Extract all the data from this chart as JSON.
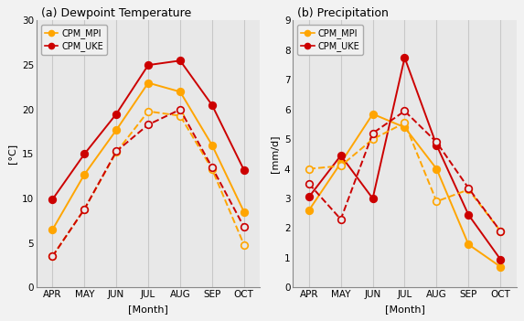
{
  "months": [
    "APR",
    "MAY",
    "JUN",
    "JUL",
    "AUG",
    "SEP",
    "OCT"
  ],
  "dewpoint": {
    "CPM_MPI_future": [
      6.5,
      12.7,
      17.7,
      23.0,
      22.0,
      16.0,
      8.5
    ],
    "CPM_UKE_future": [
      9.9,
      15.0,
      19.5,
      25.0,
      25.5,
      20.5,
      13.2
    ],
    "CPM_MPI_hist": [
      3.5,
      8.8,
      15.2,
      19.8,
      19.3,
      13.3,
      4.8
    ],
    "CPM_UKE_hist": [
      3.5,
      8.8,
      15.3,
      18.3,
      20.0,
      13.5,
      6.8
    ]
  },
  "precip": {
    "CPM_MPI_future": [
      2.6,
      4.2,
      5.85,
      5.4,
      4.0,
      1.45,
      0.7
    ],
    "CPM_UKE_future": [
      3.05,
      4.45,
      3.0,
      7.75,
      4.8,
      2.45,
      0.95
    ],
    "CPM_MPI_hist": [
      4.0,
      4.1,
      5.0,
      5.55,
      2.9,
      3.3,
      1.9
    ],
    "CPM_UKE_hist": [
      3.5,
      2.3,
      5.2,
      5.95,
      4.9,
      3.35,
      1.9
    ]
  },
  "color_mpi": "#FFA500",
  "color_uke": "#CC0000",
  "title_a": "(a) Dewpoint Temperature",
  "title_b": "(b) Precipitation",
  "ylabel_a": "[°C]",
  "ylabel_b": "[mm/d]",
  "xlabel": "[Month]",
  "ylim_a": [
    0,
    30
  ],
  "ylim_b": [
    0,
    9
  ],
  "yticks_a": [
    0,
    5,
    10,
    15,
    20,
    25,
    30
  ],
  "yticks_b": [
    0,
    1,
    2,
    3,
    4,
    5,
    6,
    7,
    8,
    9
  ],
  "bg_color": "#e8e8e8",
  "grid_color": "#c8c8c8",
  "figsize": [
    5.73,
    3.51
  ],
  "dpi": 100
}
